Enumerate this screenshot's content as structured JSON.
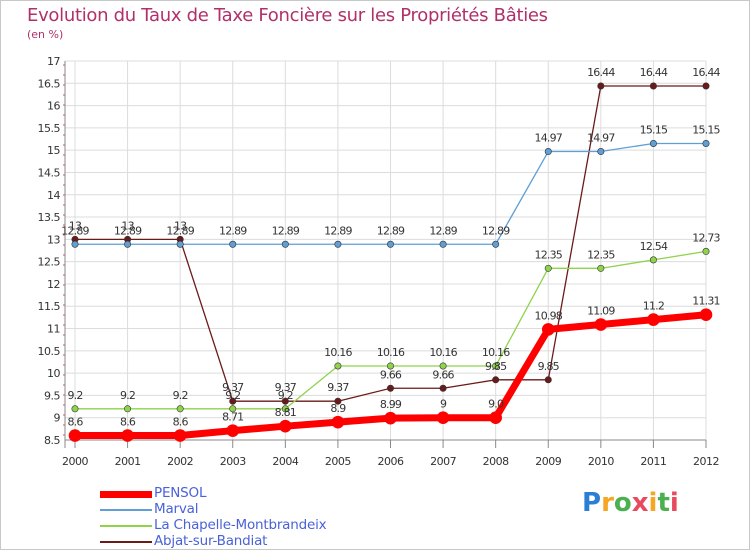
{
  "title": "Evolution du Taux de Taxe Foncière sur les Propriétés Bâties",
  "subtitle": "(en %)",
  "logo": {
    "chars": [
      "P",
      "r",
      "o",
      "x",
      "i",
      "t",
      "i"
    ],
    "colors": [
      "#2a7fd4",
      "#f5a623",
      "#4caf50",
      "#e84a5f",
      "#f5a623",
      "#4caf50",
      "#e84a5f"
    ]
  },
  "chart_data": {
    "type": "line",
    "title": "Evolution du Taux de Taxe Foncière sur les Propriétés Bâties",
    "ylabel": "(en %)",
    "xlabel": "",
    "ylim": [
      8.5,
      17
    ],
    "yticks": [
      8.5,
      9,
      9.5,
      10,
      10.5,
      11,
      11.5,
      12,
      12.5,
      13,
      13.5,
      14,
      14.5,
      15,
      15.5,
      16,
      16.5,
      17
    ],
    "categories": [
      "2000",
      "2001",
      "2002",
      "2003",
      "2004",
      "2005",
      "2006",
      "2007",
      "2008",
      "2009",
      "2010",
      "2011",
      "2012"
    ],
    "series": [
      {
        "name": "Abjat-sur-Bandiat",
        "color": "#6b1a1a",
        "values": [
          13,
          13,
          13,
          9.37,
          9.37,
          9.37,
          9.66,
          9.66,
          9.85,
          9.85,
          16.44,
          16.44,
          16.44
        ],
        "labels": [
          "13",
          "13",
          "13",
          "9.37",
          "9.37",
          "9.37",
          "9.66",
          "9.66",
          "9.85",
          "9.85",
          "16.44",
          "16.44",
          "16.44"
        ]
      },
      {
        "name": "La Chapelle-Montbrandeix",
        "color": "#8fd34a",
        "values": [
          9.2,
          9.2,
          9.2,
          9.2,
          9.2,
          10.16,
          10.16,
          10.16,
          10.16,
          12.35,
          12.35,
          12.54,
          12.73
        ],
        "labels": [
          "9.2",
          "9.2",
          "9.2",
          "9.2",
          "9.2",
          "10.16",
          "10.16",
          "10.16",
          "10.16",
          "12.35",
          "12.35",
          "12.54",
          "12.73"
        ]
      },
      {
        "name": "Marval",
        "color": "#5f9fd6",
        "values": [
          12.89,
          12.89,
          12.89,
          12.89,
          12.89,
          12.89,
          12.89,
          12.89,
          12.89,
          14.97,
          14.97,
          15.15,
          15.15
        ],
        "labels": [
          "12.89",
          "12.89",
          "12.89",
          "12.89",
          "12.89",
          "12.89",
          "12.89",
          "12.89",
          "12.89",
          "14.97",
          "14.97",
          "15.15",
          "15.15"
        ]
      },
      {
        "name": "PENSOL",
        "color": "#ff0000",
        "values": [
          8.6,
          8.6,
          8.6,
          8.71,
          8.81,
          8.9,
          8.99,
          9,
          9,
          10.98,
          11.09,
          11.2,
          11.31
        ],
        "labels": [
          "8.6",
          "8.6",
          "8.6",
          "8.71",
          "8.81",
          "8.9",
          "8.99",
          "9",
          "9.0",
          "10.98",
          "11.09",
          "11.2",
          "11.31"
        ]
      }
    ],
    "legend": [
      {
        "name": "PENSOL",
        "color": "#ff0000"
      },
      {
        "name": "Marval",
        "color": "#5f9fd6"
      },
      {
        "name": "La Chapelle-Montbrandeix",
        "color": "#8fd34a"
      },
      {
        "name": "Abjat-sur-Bandiat",
        "color": "#6b1a1a"
      }
    ]
  }
}
